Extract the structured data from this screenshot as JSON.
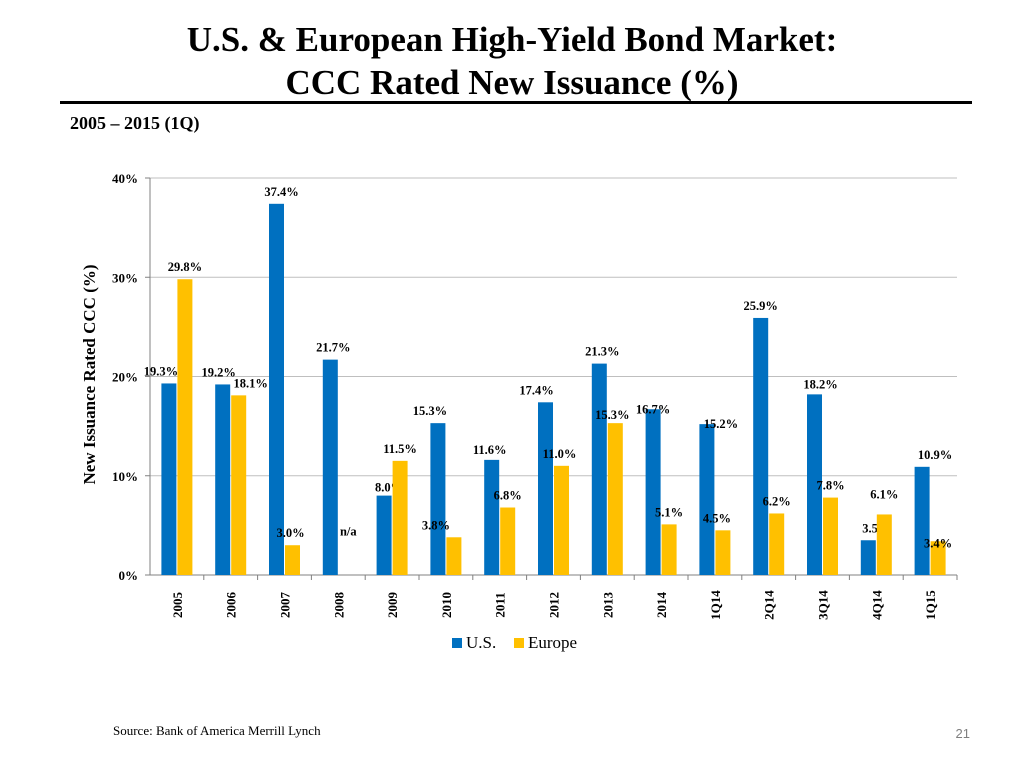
{
  "slide": {
    "title_line1": "U.S. & European High-Yield Bond Market:",
    "title_line2": "CCC Rated New Issuance (%)",
    "subtitle": "2005 – 2015 (1Q)",
    "source": "Source: Bank of America Merrill Lynch",
    "page_number": "21"
  },
  "chart_data": {
    "type": "bar",
    "title": "U.S. & European High-Yield Bond Market: CCC Rated New Issuance (%)",
    "subtitle": "2005 – 2015 (1Q)",
    "xlabel": "",
    "ylabel": "New Issuance Rated CCC (%)",
    "ylim": [
      0,
      40
    ],
    "yticks": [
      0,
      10,
      20,
      30,
      40
    ],
    "ytick_labels": [
      "0%",
      "10%",
      "20%",
      "30%",
      "40%"
    ],
    "grid": true,
    "legend_position": "bottom",
    "categories": [
      "2005",
      "2006",
      "2007",
      "2008",
      "2009",
      "2010",
      "2011",
      "2012",
      "2013",
      "2014",
      "1Q14",
      "2Q14",
      "3Q14",
      "4Q14",
      "1Q15"
    ],
    "series": [
      {
        "name": "U.S.",
        "color": "#0070C0",
        "values": [
          19.3,
          19.2,
          37.4,
          21.7,
          8.0,
          15.3,
          11.6,
          17.4,
          21.3,
          16.7,
          15.2,
          25.9,
          18.2,
          3.5,
          10.9
        ],
        "labels": [
          "19.3%",
          "19.2%",
          "37.4%",
          "21.7%",
          "8.0%",
          "15.3%",
          "11.6%",
          "17.4%",
          "21.3%",
          "16.7%",
          "15.2%",
          "25.9%",
          "18.2%",
          "3.5%",
          "10.9%"
        ]
      },
      {
        "name": "Europe",
        "color": "#FFC000",
        "values": [
          29.8,
          18.1,
          3.0,
          null,
          11.5,
          3.8,
          6.8,
          11.0,
          15.3,
          5.1,
          4.5,
          6.2,
          7.8,
          6.1,
          3.4
        ],
        "labels": [
          "29.8%",
          "18.1%",
          "3.0%",
          "n/a",
          "11.5%",
          "3.8%",
          "6.8%",
          "11.0%",
          "15.3%",
          "5.1%",
          "4.5%",
          "6.2%",
          "7.8%",
          "6.1%",
          "3.4%"
        ]
      }
    ]
  }
}
